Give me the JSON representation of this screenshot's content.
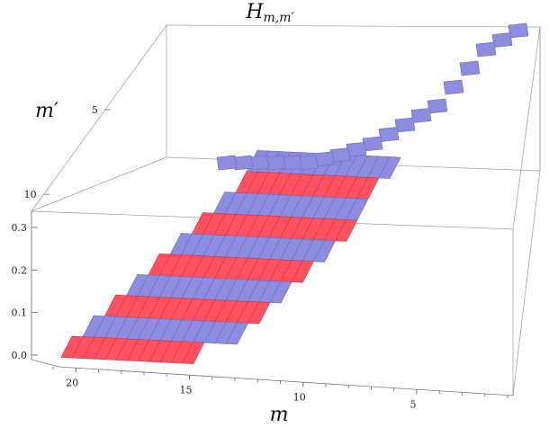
{
  "chart_data": {
    "type": "heatmap",
    "render_style": "3d-discrete-plot",
    "title_main": "H",
    "title_sub": "m,m′",
    "xlabel": "m",
    "ylabel": "m′",
    "zlabel": "",
    "x_ticks": [
      "20",
      "15",
      "10",
      "5"
    ],
    "y_ticks": [
      "5",
      "10"
    ],
    "z_ticks": [
      "0.0",
      "0.1",
      "0.2",
      "0.3"
    ],
    "x_range": [
      1,
      21
    ],
    "y_range": [
      0,
      11
    ],
    "zlim": [
      0,
      0.3
    ],
    "colors": {
      "positive": "#ff5060",
      "negative": "#8c8ce0",
      "axis": "#7a7a7a"
    },
    "series": [
      {
        "name": "",
        "m_prime": 0,
        "value": 0.0,
        "m_from": 10,
        "m_to": 21
      },
      {
        "name": "",
        "m_prime": 1,
        "value": 0.0333,
        "m_from": 7,
        "m_to": 20
      },
      {
        "name": "",
        "m_prime": 2,
        "value": 0.0667,
        "m_from": 6,
        "m_to": 19
      },
      {
        "name": "",
        "m_prime": 3,
        "value": 0.1,
        "m_from": 5,
        "m_to": 18
      },
      {
        "name": "",
        "m_prime": 4,
        "value": 0.1333,
        "m_from": 4,
        "m_to": 17
      },
      {
        "name": "",
        "m_prime": 5,
        "value": 0.1667,
        "m_from": 3,
        "m_to": 16
      },
      {
        "name": "",
        "m_prime": 6,
        "value": 0.2,
        "m_from": 2,
        "m_to": 15
      },
      {
        "name": "",
        "m_prime": 7,
        "value": 0.2333,
        "m_from": 2,
        "m_to": 14
      },
      {
        "name": "",
        "m_prime": 8,
        "value": 0.2667,
        "m_from": 2,
        "m_to": 13
      },
      {
        "name": "",
        "m_prime": 9,
        "value": 0.3,
        "m_from": 1,
        "m_to": 13
      }
    ],
    "diagonal": [
      {
        "m": 1,
        "m_prime": 11
      },
      {
        "m": 2,
        "m_prime": 10.5
      },
      {
        "m": 3,
        "m_prime": 10
      },
      {
        "m": 4,
        "m_prime": 9
      },
      {
        "m": 5,
        "m_prime": 8
      },
      {
        "m": 6,
        "m_prime": 7
      },
      {
        "m": 7,
        "m_prime": 6.5
      },
      {
        "m": 8,
        "m_prime": 6
      },
      {
        "m": 9,
        "m_prime": 5.5
      },
      {
        "m": 10,
        "m_prime": 5
      },
      {
        "m": 11,
        "m_prime": 4.7
      },
      {
        "m": 12,
        "m_prime": 4.4
      },
      {
        "m": 13,
        "m_prime": 4.2
      },
      {
        "m": 14,
        "m_prime": 4
      },
      {
        "m": 15,
        "m_prime": 4
      },
      {
        "m": 16,
        "m_prime": 4
      },
      {
        "m": 17,
        "m_prime": 4
      },
      {
        "m": 18,
        "m_prime": 4
      },
      {
        "m": 19,
        "m_prime": 4
      }
    ],
    "grid": false,
    "legend": "none"
  }
}
